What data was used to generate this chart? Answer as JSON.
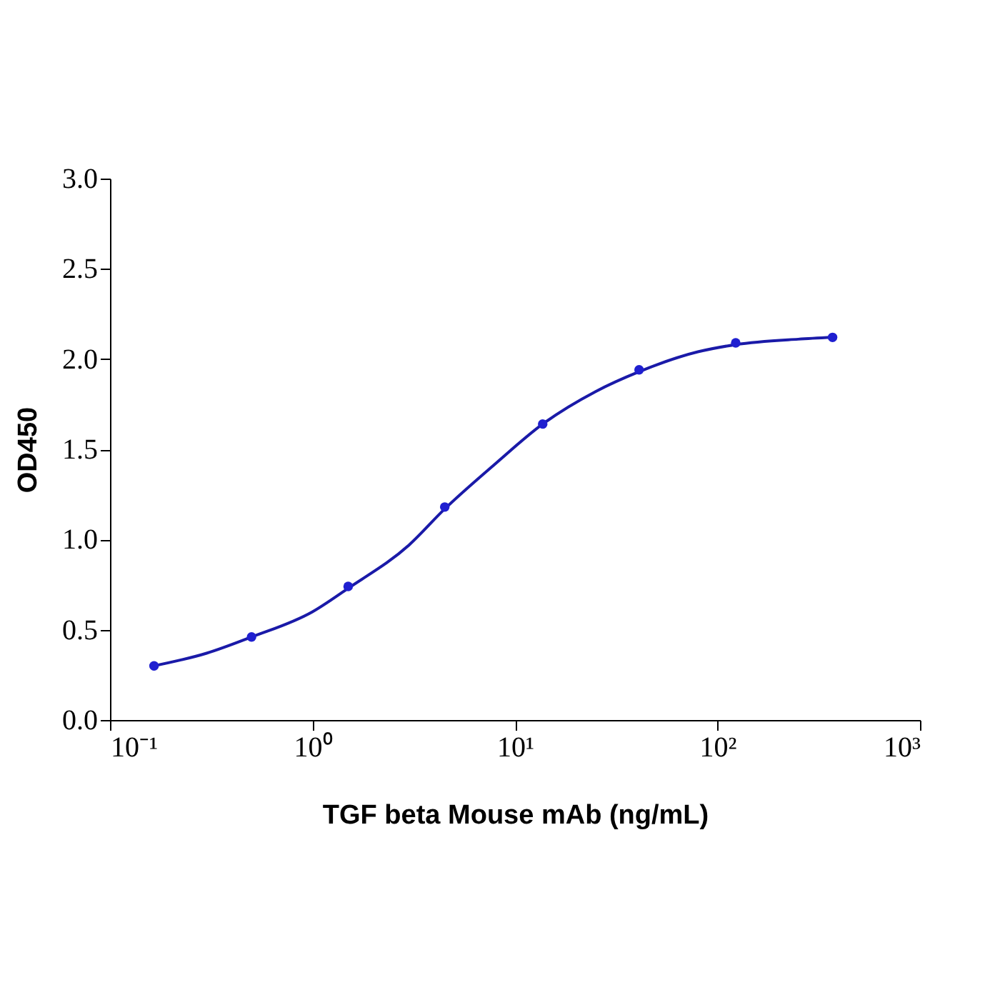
{
  "chart_data": {
    "type": "scatter",
    "xlabel": "TGF beta Mouse mAb (ng/mL)",
    "ylabel": "OD450",
    "log": "x",
    "grid": false,
    "xlim": [
      0.1,
      1000
    ],
    "xticks": [
      {
        "value": 0.1,
        "label": "10⁻¹"
      },
      {
        "value": 1,
        "label": "10⁰"
      },
      {
        "value": 10,
        "label": "10¹"
      },
      {
        "value": 100,
        "label": "10²"
      },
      {
        "value": 1000,
        "label": "10³"
      }
    ],
    "ylim": [
      0,
      3
    ],
    "yticks": [
      {
        "value": 0,
        "label": "0.0"
      },
      {
        "value": 0.5,
        "label": "0.5"
      },
      {
        "value": 1,
        "label": "1.0"
      },
      {
        "value": 1.5,
        "label": "1.5"
      },
      {
        "value": 2,
        "label": "2.0"
      },
      {
        "value": 2.5,
        "label": "2.5"
      },
      {
        "value": 3,
        "label": "3.0"
      }
    ],
    "series": [
      {
        "type": "line",
        "color": "#1a1aa8",
        "marker": "none",
        "x": [
          0.165,
          0.3,
          0.5,
          1,
          1.5,
          3,
          4.5,
          8,
          13.7,
          25,
          41,
          80,
          123,
          250,
          370
        ],
        "values": [
          0.3,
          0.37,
          0.46,
          0.6,
          0.73,
          0.97,
          1.17,
          1.42,
          1.64,
          1.82,
          1.93,
          2.04,
          2.08,
          2.11,
          2.12
        ]
      },
      {
        "color": "#1f1fd0",
        "marker": "circle",
        "x": [
          0.165,
          0.5,
          1.5,
          4.5,
          13.7,
          41,
          123,
          370
        ],
        "values": [
          0.3,
          0.46,
          0.74,
          1.18,
          1.64,
          1.94,
          2.09,
          2.12
        ]
      }
    ]
  }
}
